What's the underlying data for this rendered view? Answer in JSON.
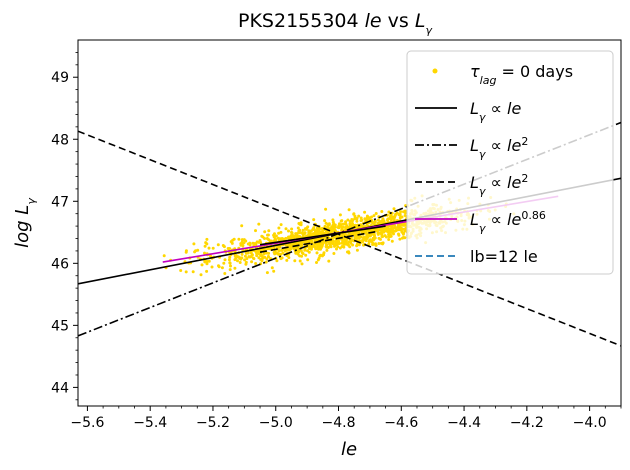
{
  "chart_data": {
    "type": "scatter",
    "title": "PKS2155304 le vs Lγ",
    "xlabel": "le",
    "ylabel": "log Lγ",
    "xlim": [
      -5.63,
      -3.9
    ],
    "ylim": [
      43.7,
      49.6
    ],
    "x_ticks": [
      -5.6,
      -5.4,
      -5.2,
      -5.0,
      -4.8,
      -4.6,
      -4.4,
      -4.2,
      -4.0
    ],
    "x_tick_labels": [
      "−5.6",
      "−5.4",
      "−5.2",
      "−5.0",
      "−4.8",
      "−4.6",
      "−4.4",
      "−4.2",
      "−4.0"
    ],
    "y_ticks": [
      44,
      45,
      46,
      47,
      48,
      49
    ],
    "y_tick_labels": [
      "44",
      "45",
      "46",
      "47",
      "48",
      "49"
    ],
    "grid": false,
    "legend_position": "top-right",
    "colors": {
      "scatter": "#FFD700",
      "linear": "#000000",
      "dashdot": "#000000",
      "dashed": "#000000",
      "fit": "#C000C0",
      "lb": "#1f77b4"
    },
    "legend": [
      {
        "key": "scatter",
        "label": "τlag = 0  days"
      },
      {
        "key": "linear",
        "label": "Lγ ∝ le"
      },
      {
        "key": "dashdot",
        "label": "Lγ ∝ le²"
      },
      {
        "key": "dashed",
        "label": "Lγ ∝ le²"
      },
      {
        "key": "fit",
        "label": "Lγ ∝ le^0.86"
      },
      {
        "key": "lb",
        "label": "lb=12 le"
      }
    ],
    "series": [
      {
        "key": "linear",
        "style": "solid",
        "x": [
          -5.63,
          -3.9
        ],
        "y": [
          45.67,
          47.37
        ]
      },
      {
        "key": "dashdot",
        "style": "dashdot",
        "x": [
          -5.63,
          -3.9
        ],
        "y": [
          44.83,
          48.27
        ]
      },
      {
        "key": "dashed",
        "style": "dashed",
        "x": [
          -5.63,
          -3.9
        ],
        "y": [
          48.13,
          44.67
        ]
      },
      {
        "key": "fit",
        "style": "solid",
        "x": [
          -5.36,
          -4.1
        ],
        "y": [
          46.02,
          47.08
        ]
      },
      {
        "key": "dashed-mini",
        "style": "dashed",
        "x": [
          -5.05,
          -4.67
        ],
        "y": [
          46.18,
          46.52
        ]
      },
      {
        "key": "linear-mini",
        "style": "solid",
        "x": [
          -5.05,
          -4.65
        ],
        "y": [
          46.3,
          46.6
        ]
      }
    ],
    "scatter": {
      "count": 1500,
      "x_range": [
        -5.36,
        -4.1
      ],
      "center_x": -4.8,
      "slope": 0.86,
      "intercept": 46.45,
      "spread": 0.12
    }
  }
}
